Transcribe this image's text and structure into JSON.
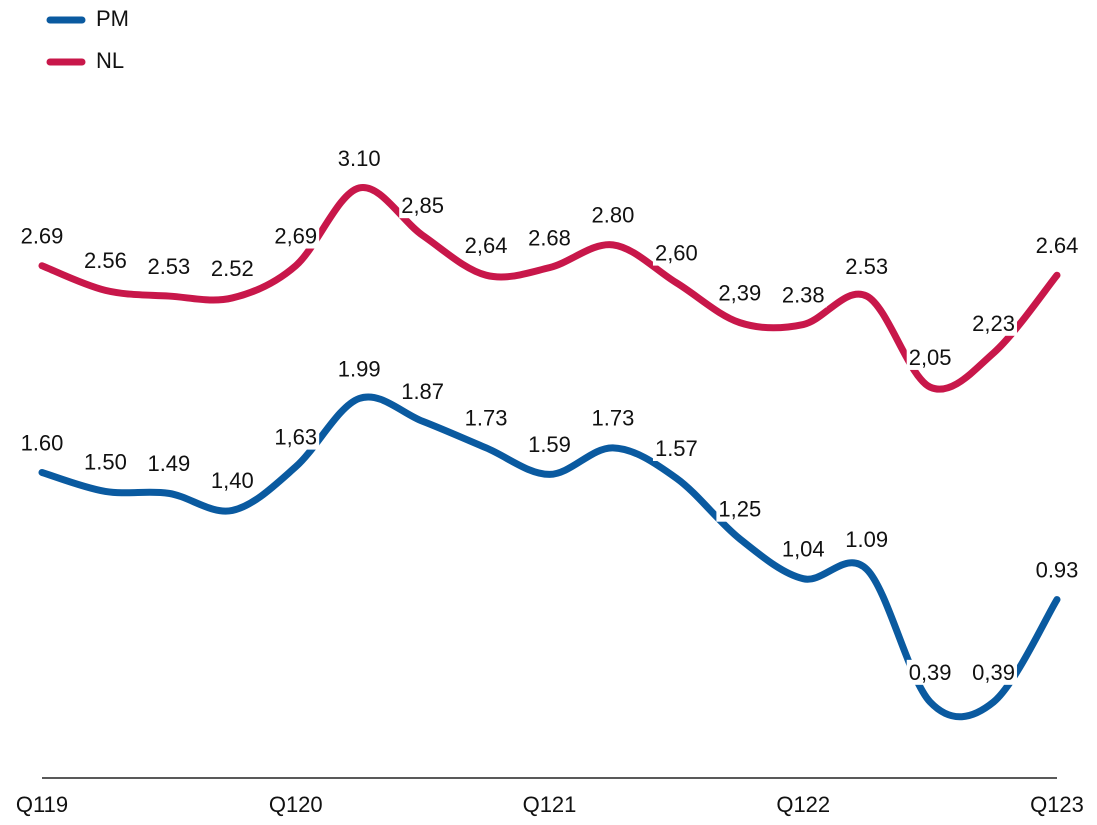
{
  "chart_data": {
    "type": "line",
    "categories": [
      "Q119",
      null,
      null,
      null,
      "Q120",
      null,
      null,
      null,
      "Q121",
      null,
      null,
      null,
      "Q122",
      null,
      null,
      null,
      "Q123"
    ],
    "series": [
      {
        "name": "PM",
        "color": "#0a5aa0",
        "values": [
          1.6,
          1.5,
          1.49,
          1.4,
          1.63,
          1.99,
          1.87,
          1.73,
          1.59,
          1.73,
          1.57,
          1.25,
          1.04,
          1.09,
          0.39,
          0.39,
          0.93
        ],
        "value_labels": [
          "1.60",
          "1.50",
          "1.49",
          "1,40",
          "1,63",
          "1.99",
          "1.87",
          "1.73",
          "1.59",
          "1.73",
          "1.57",
          "1,25",
          "1,04",
          "1.09",
          "0,39",
          "0,39",
          "0.93"
        ]
      },
      {
        "name": "NL",
        "color": "#c8174a",
        "values": [
          2.69,
          2.56,
          2.53,
          2.52,
          2.69,
          3.1,
          2.85,
          2.64,
          2.68,
          2.8,
          2.6,
          2.39,
          2.38,
          2.53,
          2.05,
          2.23,
          2.64
        ],
        "value_labels": [
          "2.69",
          "2.56",
          "2.53",
          "2.52",
          "2,69",
          "3.10",
          "2,85",
          "2,64",
          "2.68",
          "2.80",
          "2,60",
          "2,39",
          "2.38",
          "2.53",
          "2,05",
          "2,23",
          "2.64"
        ]
      }
    ],
    "ylim": [
      0,
      3.3
    ],
    "legend": "top-left"
  }
}
